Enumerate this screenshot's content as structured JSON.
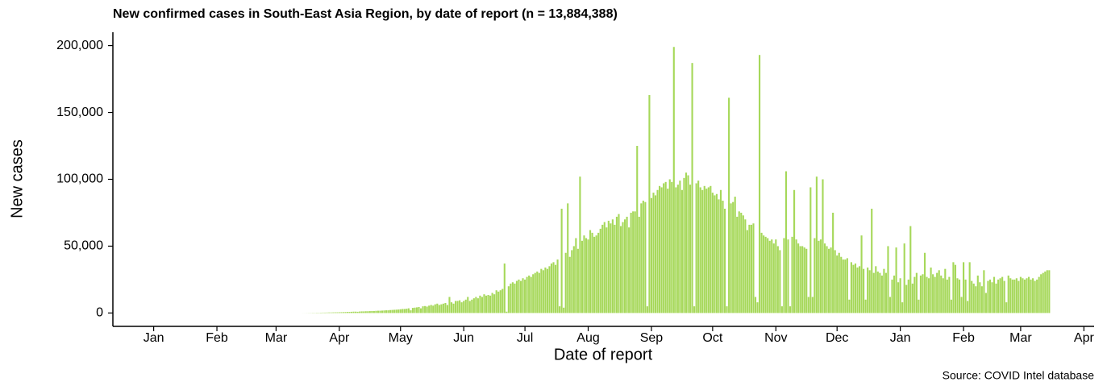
{
  "chart_data": {
    "type": "bar",
    "title": "New confirmed cases in South-East Asia Region, by date of report (n = 13,884,388)",
    "x_label": "Date of report",
    "y_label": "New cases",
    "caption": "Source: COVID Intel database",
    "color": "#a6d85a",
    "xlim": [
      -20,
      461
    ],
    "xticks": [
      {
        "value": 0,
        "label": "Jan"
      },
      {
        "value": 31,
        "label": "Feb"
      },
      {
        "value": 60,
        "label": "Mar"
      },
      {
        "value": 91,
        "label": "Apr"
      },
      {
        "value": 121,
        "label": "May"
      },
      {
        "value": 152,
        "label": "Jun"
      },
      {
        "value": 182,
        "label": "Jul"
      },
      {
        "value": 213,
        "label": "Aug"
      },
      {
        "value": 244,
        "label": "Sep"
      },
      {
        "value": 274,
        "label": "Oct"
      },
      {
        "value": 305,
        "label": "Nov"
      },
      {
        "value": 335,
        "label": "Dec"
      },
      {
        "value": 366,
        "label": "Jan"
      },
      {
        "value": 397,
        "label": "Feb"
      },
      {
        "value": 425,
        "label": "Mar"
      },
      {
        "value": 456,
        "label": "Apr"
      }
    ],
    "ylim": [
      -10000,
      210000
    ],
    "yticks": [
      0,
      {
        "value": 50000,
        "label": "50,000"
      },
      {
        "value": 100000,
        "label": "100,000"
      },
      {
        "value": 150000,
        "label": "150,000"
      },
      {
        "value": 200000,
        "label": "200,000"
      }
    ],
    "x": [
      73,
      74,
      75,
      76,
      77,
      78,
      79,
      80,
      81,
      82,
      83,
      84,
      85,
      86,
      87,
      88,
      89,
      90,
      91,
      92,
      93,
      94,
      95,
      96,
      97,
      98,
      99,
      100,
      101,
      102,
      103,
      104,
      105,
      106,
      107,
      108,
      109,
      110,
      111,
      112,
      113,
      114,
      115,
      116,
      117,
      118,
      119,
      120,
      121,
      122,
      123,
      124,
      125,
      126,
      127,
      128,
      129,
      130,
      131,
      132,
      133,
      134,
      135,
      136,
      137,
      138,
      139,
      140,
      141,
      142,
      143,
      144,
      145,
      146,
      147,
      148,
      149,
      150,
      151,
      152,
      153,
      154,
      155,
      156,
      157,
      158,
      159,
      160,
      161,
      162,
      163,
      164,
      165,
      166,
      167,
      168,
      169,
      170,
      171,
      172,
      173,
      174,
      175,
      176,
      177,
      178,
      179,
      180,
      181,
      182,
      183,
      184,
      185,
      186,
      187,
      188,
      189,
      190,
      191,
      192,
      193,
      194,
      195,
      196,
      197,
      198,
      199,
      200,
      201,
      202,
      203,
      204,
      205,
      206,
      207,
      208,
      209,
      210,
      211,
      212,
      213,
      214,
      215,
      216,
      217,
      218,
      219,
      220,
      221,
      222,
      223,
      224,
      225,
      226,
      227,
      228,
      229,
      230,
      231,
      232,
      233,
      234,
      235,
      236,
      237,
      238,
      239,
      240,
      241,
      242,
      243,
      244,
      245,
      246,
      247,
      248,
      249,
      250,
      251,
      252,
      253,
      254,
      255,
      256,
      257,
      258,
      259,
      260,
      261,
      262,
      263,
      264,
      265,
      266,
      267,
      268,
      269,
      270,
      271,
      272,
      273,
      274,
      275,
      276,
      277,
      278,
      279,
      280,
      281,
      282,
      283,
      284,
      285,
      286,
      287,
      288,
      289,
      290,
      291,
      292,
      293,
      294,
      295,
      296,
      297,
      298,
      299,
      300,
      301,
      302,
      303,
      304,
      305,
      306,
      307,
      308,
      309,
      310,
      311,
      312,
      313,
      314,
      315,
      316,
      317,
      318,
      319,
      320,
      321,
      322,
      323,
      324,
      325,
      326,
      327,
      328,
      329,
      330,
      331,
      332,
      333,
      334,
      335,
      336,
      337,
      338,
      339,
      340,
      341,
      342,
      343,
      344,
      345,
      346,
      347,
      348,
      349,
      350,
      351,
      352,
      353,
      354,
      355,
      356,
      357,
      358,
      359,
      360,
      361,
      362,
      363,
      364,
      365,
      366,
      367,
      368,
      369,
      370,
      371,
      372,
      373,
      374,
      375,
      376,
      377,
      378,
      379,
      380,
      381,
      382,
      383,
      384,
      385,
      386,
      387,
      388,
      389,
      390,
      391,
      392,
      393,
      394,
      395,
      396,
      397,
      398,
      399,
      400,
      401,
      402,
      403,
      404,
      405,
      406,
      407,
      408,
      409,
      410,
      411,
      412,
      413,
      414,
      415,
      416,
      417,
      418,
      419,
      420,
      421,
      422,
      423,
      424,
      425,
      426,
      427,
      428,
      429,
      430,
      431,
      432,
      433,
      434,
      435,
      436,
      437,
      438,
      439
    ],
    "values": [
      20,
      30,
      50,
      80,
      100,
      150,
      150,
      200,
      200,
      250,
      300,
      300,
      350,
      400,
      400,
      450,
      500,
      500,
      550,
      600,
      650,
      700,
      800,
      800,
      900,
      1000,
      1000,
      900,
      1100,
      1200,
      1200,
      1300,
      1300,
      1400,
      1500,
      1500,
      1600,
      1700,
      1700,
      1800,
      1900,
      2000,
      2000,
      2200,
      2300,
      2400,
      2500,
      2600,
      2800,
      3000,
      3000,
      3200,
      3500,
      2000,
      3800,
      4000,
      4200,
      4500,
      3500,
      5000,
      5200,
      4800,
      5500,
      6000,
      5500,
      6500,
      7000,
      6000,
      6500,
      7000,
      7500,
      6000,
      12000,
      8000,
      7000,
      9000,
      9000,
      9500,
      8000,
      9000,
      10000,
      12000,
      9000,
      10000,
      11000,
      12000,
      11000,
      13000,
      12000,
      14000,
      13000,
      13500,
      13000,
      15000,
      14000,
      17000,
      16000,
      17000,
      18000,
      37000,
      1000,
      20000,
      22000,
      23000,
      22000,
      24000,
      25000,
      24000,
      26000,
      25000,
      27000,
      28000,
      27000,
      29000,
      30000,
      31000,
      30000,
      33000,
      32000,
      34000,
      33000,
      35000,
      37000,
      38000,
      36000,
      40000,
      5000,
      78000,
      4000,
      45000,
      82000,
      42000,
      47000,
      50000,
      56000,
      48000,
      102000,
      54000,
      58000,
      56000,
      55000,
      62000,
      60000,
      57000,
      58000,
      60000,
      63000,
      66000,
      68000,
      64000,
      69000,
      67000,
      70000,
      66000,
      72000,
      74000,
      65000,
      68000,
      70000,
      72000,
      64000,
      75000,
      76000,
      76000,
      125000,
      72000,
      82000,
      84000,
      83000,
      5000,
      163000,
      86000,
      90000,
      88000,
      92000,
      95000,
      94000,
      97000,
      98000,
      93000,
      100000,
      98000,
      199000,
      94000,
      96000,
      99000,
      92000,
      101000,
      105000,
      103000,
      96000,
      187000,
      5000,
      97000,
      99000,
      94000,
      92000,
      95000,
      93000,
      94000,
      95000,
      90000,
      88000,
      89000,
      85000,
      92000,
      84000,
      78000,
      5000,
      161000,
      82000,
      83000,
      87000,
      72000,
      76000,
      75000,
      73000,
      70000,
      62000,
      66000,
      66000,
      67000,
      12000,
      8000,
      193000,
      60000,
      58000,
      57000,
      56000,
      54000,
      55000,
      52000,
      55000,
      50000,
      47000,
      5000,
      56000,
      106000,
      55000,
      5000,
      57000,
      92000,
      55000,
      52000,
      50000,
      50000,
      49000,
      48000,
      12000,
      94000,
      12000,
      56000,
      102000,
      54000,
      55000,
      100000,
      52000,
      50000,
      48000,
      49000,
      75000,
      47000,
      43000,
      45000,
      42000,
      40000,
      40000,
      41000,
      10000,
      38000,
      36000,
      37000,
      34000,
      35000,
      58000,
      33000,
      10000,
      34000,
      32000,
      78000,
      30000,
      35000,
      31000,
      30000,
      28000,
      33000,
      30000,
      50000,
      12000,
      25000,
      28000,
      49000,
      23000,
      26000,
      8000,
      52000,
      21000,
      25000,
      65000,
      22000,
      27000,
      30000,
      10000,
      28000,
      29000,
      45000,
      27000,
      26000,
      34000,
      29000,
      27000,
      30000,
      32000,
      28000,
      26000,
      33000,
      25000,
      27000,
      10000,
      38000,
      36000,
      26000,
      25000,
      12000,
      38000,
      25000,
      9000,
      38000,
      24000,
      22000,
      20000,
      28000,
      23000,
      20000,
      32000,
      15000,
      24000,
      25000,
      23000,
      27000,
      22000,
      25000,
      26000,
      27000,
      24000,
      8000,
      28000,
      26000,
      25000,
      25000,
      26000,
      24000,
      27000,
      26000,
      25000,
      26000,
      27000,
      25000,
      26000,
      24000,
      25000,
      27000,
      29000,
      30000,
      31000,
      32000,
      32000
    ]
  }
}
